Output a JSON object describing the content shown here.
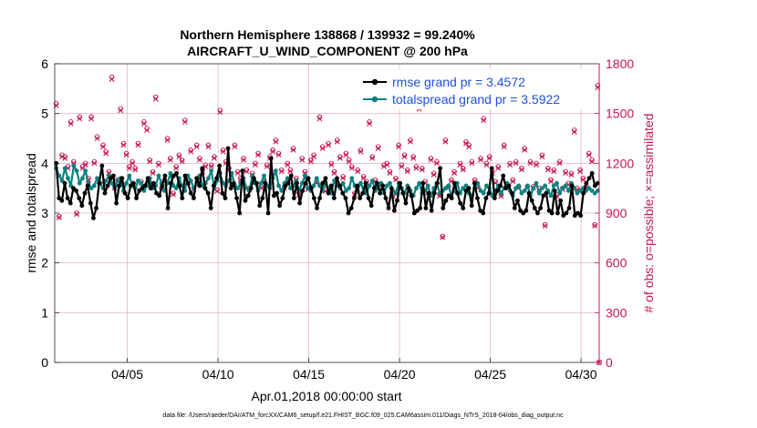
{
  "chart_data": {
    "type": "line",
    "title_line1": "Northern Hemisphere 138868 / 139932 = 99.240%",
    "title_line2": "AIRCRAFT_U_WIND_COMPONENT @ 200 hPa",
    "xlabel": "Apr.01,2018 00:00:00 start",
    "ylabel": "rmse and totalspread",
    "ylabel_right": "# of obs: o=possible; ×=assimilated",
    "footer": "data file: /Users/raeder/DAI/ATM_forcXX/CAM6_setup/f.e21.FHIST_BGC.f09_025.CAM6assim.011/Diags_NTrS_2018-04/obs_diag_output.nc",
    "xlim": [
      1.0,
      31.0
    ],
    "ylim": [
      0,
      6
    ],
    "ylim_right": [
      0,
      1800
    ],
    "x_ticks": [
      {
        "x": 5,
        "label": "04/05"
      },
      {
        "x": 10,
        "label": "04/10"
      },
      {
        "x": 15,
        "label": "04/15"
      },
      {
        "x": 20,
        "label": "04/20"
      },
      {
        "x": 25,
        "label": "04/25"
      },
      {
        "x": 30,
        "label": "04/30"
      }
    ],
    "y_ticks": [
      "0",
      "1",
      "2",
      "3",
      "4",
      "5",
      "6"
    ],
    "y_ticks_right": [
      "0",
      "300",
      "600",
      "900",
      "1200",
      "1500",
      "1800"
    ],
    "grid": true,
    "legend_position": "top-right",
    "series": [
      {
        "name": "rmse",
        "label": "rmse grand pr = 3.4572",
        "color": "#000000",
        "values": [
          4.0,
          3.3,
          3.25,
          3.6,
          3.3,
          3.2,
          3.5,
          3.45,
          3.3,
          3.15,
          3.4,
          3.55,
          3.2,
          2.9,
          3.1,
          3.6,
          3.95,
          3.4,
          3.55,
          3.7,
          3.75,
          3.2,
          3.55,
          3.7,
          3.4,
          3.3,
          3.55,
          3.6,
          3.3,
          3.45,
          3.5,
          3.55,
          3.7,
          3.5,
          3.6,
          3.4,
          3.35,
          3.55,
          3.75,
          3.1,
          3.6,
          3.75,
          3.8,
          3.55,
          3.3,
          3.75,
          3.6,
          3.4,
          3.3,
          3.7,
          3.55,
          3.9,
          3.5,
          3.4,
          3.1,
          3.55,
          3.7,
          3.95,
          3.4,
          3.3,
          4.3,
          3.5,
          3.6,
          3.3,
          3.0,
          3.85,
          3.25,
          3.35,
          3.5,
          3.7,
          3.6,
          3.15,
          3.3,
          3.6,
          3.0,
          4.1,
          3.35,
          3.4,
          3.15,
          3.3,
          3.55,
          3.6,
          3.75,
          3.3,
          3.6,
          3.2,
          3.45,
          3.6,
          3.7,
          3.5,
          3.3,
          3.1,
          3.3,
          3.6,
          3.7,
          3.4,
          3.55,
          3.3,
          3.7,
          3.55,
          3.4,
          3.3,
          3.0,
          3.1,
          3.3,
          3.55,
          3.3,
          3.4,
          3.6,
          3.3,
          3.15,
          3.5,
          3.6,
          3.4,
          3.55,
          3.3,
          3.1,
          3.5,
          3.05,
          3.25,
          3.6,
          3.4,
          3.2,
          3.5,
          3.35,
          3.0,
          3.05,
          3.1,
          3.6,
          3.1,
          3.4,
          3.05,
          3.4,
          3.6,
          3.9,
          3.1,
          3.25,
          3.35,
          3.3,
          3.6,
          3.4,
          3.2,
          3.1,
          3.45,
          3.5,
          3.15,
          3.6,
          3.3,
          3.05,
          3.0,
          3.3,
          3.4,
          3.9,
          3.3,
          3.45,
          3.55,
          3.75,
          3.5,
          3.55,
          3.4,
          3.1,
          3.25,
          3.05,
          3.0,
          3.05,
          3.4,
          3.25,
          3.1,
          3.0,
          3.1,
          3.35,
          3.4,
          3.05,
          3.0,
          3.45,
          3.0,
          3.25,
          2.95,
          3.0,
          3.1,
          3.55,
          2.95,
          3.0,
          2.95,
          3.4,
          3.6,
          3.7,
          3.8,
          3.55,
          3.6
        ]
      },
      {
        "name": "totalspread",
        "label": "totalspread grand pr = 3.5922",
        "color": "#0e8080",
        "values": [
          3.9,
          3.75,
          3.65,
          3.9,
          3.7,
          3.55,
          3.95,
          3.85,
          3.6,
          3.7,
          3.85,
          3.6,
          3.5,
          3.55,
          3.7,
          3.6,
          3.5,
          3.65,
          3.75,
          3.6,
          3.5,
          3.65,
          3.7,
          3.45,
          3.6,
          3.75,
          3.55,
          3.5,
          3.65,
          3.6,
          3.45,
          3.55,
          3.7,
          3.5,
          3.55,
          3.75,
          3.6,
          3.45,
          3.6,
          3.8,
          3.55,
          3.5,
          3.7,
          3.55,
          3.45,
          3.75,
          3.65,
          3.5,
          3.6,
          3.75,
          3.55,
          3.6,
          3.7,
          3.85,
          3.5,
          3.65,
          3.8,
          3.6,
          3.55,
          3.65,
          3.8,
          3.55,
          3.5,
          3.6,
          3.7,
          3.5,
          3.45,
          3.75,
          3.6,
          3.45,
          3.6,
          3.75,
          3.55,
          3.5,
          3.7,
          3.85,
          3.55,
          3.45,
          3.6,
          3.7,
          3.5,
          3.55,
          3.65,
          3.45,
          3.6,
          3.75,
          3.5,
          3.45,
          3.55,
          3.7,
          3.55,
          3.45,
          3.6,
          3.5,
          3.4,
          3.65,
          3.55,
          3.5,
          3.6,
          3.45,
          3.5,
          3.7,
          3.55,
          3.45,
          3.6,
          3.5,
          3.4,
          3.55,
          3.65,
          3.45,
          3.5,
          3.6,
          3.4,
          3.55,
          3.6,
          3.45,
          3.4,
          3.6,
          3.5,
          3.4,
          3.55,
          3.45,
          3.35,
          3.5,
          3.6,
          3.4,
          3.45,
          3.55,
          3.35,
          3.5,
          3.6,
          3.4,
          3.45,
          3.5,
          3.55,
          3.35,
          3.45,
          3.6,
          3.4,
          3.5,
          3.55,
          3.4,
          3.35,
          3.5,
          3.6,
          3.45,
          3.4,
          3.55,
          3.5,
          3.35,
          3.45,
          3.55,
          3.4,
          3.5,
          3.6,
          3.45,
          3.35,
          3.5,
          3.55,
          3.4,
          3.45,
          3.55,
          3.35,
          3.5,
          3.6,
          3.4,
          3.5,
          3.55,
          3.45,
          3.35,
          3.55,
          3.6,
          3.4,
          3.5,
          3.55,
          3.45,
          3.6,
          3.5,
          3.4,
          3.45,
          3.5,
          3.45,
          3.5,
          3.45,
          3.4,
          3.45
        ]
      }
    ],
    "obs_possible": [
      1560,
      880,
      1250,
      1240,
      1180,
      1450,
      1210,
      900,
      1480,
      1180,
      1200,
      1110,
      1480,
      1210,
      1360,
      1080,
      1310,
      1270,
      1150,
      1720,
      1060,
      1100,
      1530,
      1320,
      1260,
      1180,
      1210,
      1170,
      1320,
      1090,
      1450,
      1410,
      1220,
      1150,
      1600,
      1200,
      1050,
      1100,
      1350,
      1230,
      1020,
      1180,
      1250,
      1220,
      1460,
      1090,
      1280,
      1050,
      1310,
      1230,
      1160,
      1190,
      1310,
      1190,
      1240,
      1040,
      1520,
      1280,
      1210,
      1170,
      1090,
      1310,
      1150,
      1110,
      1230,
      1160,
      1050,
      1140,
      1200,
      1260,
      1060,
      1100,
      1190,
      1240,
      1280,
      1340,
      1260,
      1160,
      1060,
      1200,
      1160,
      1290,
      1110,
      1020,
      1230,
      1150,
      1050,
      1220,
      1250,
      1090,
      1480,
      1300,
      1040,
      1320,
      1200,
      1150,
      1340,
      1240,
      1120,
      1260,
      1220,
      1180,
      1020,
      1160,
      1280,
      1120,
      1090,
      1450,
      1240,
      1100,
      1300,
      1050,
      1190,
      1200,
      1150,
      1010,
      1110,
      1310,
      1190,
      1250,
      1160,
      1340,
      1240,
      1180,
      1540,
      1170,
      1090,
      1030,
      1230,
      1140,
      1210,
      1010,
      760,
      1340,
      1060,
      1100,
      1150,
      1590,
      1200,
      1170,
      1330,
      1310,
      1210,
      1100,
      1060,
      1230,
      1470,
      1200,
      1240,
      1150,
      1090,
      1180,
      1010,
      1310,
      1560,
      1200,
      1100,
      1210,
      1060,
      1170,
      1290,
      1060,
      1210,
      1060,
      1200,
      1050,
      1250,
      830,
      1170,
      1100,
      1160,
      1010,
      1210,
      1050,
      1150,
      1080,
      1140,
      1400,
      1050,
      1160,
      1110,
      1060,
      1260,
      1220,
      830,
      1670
    ]
  }
}
